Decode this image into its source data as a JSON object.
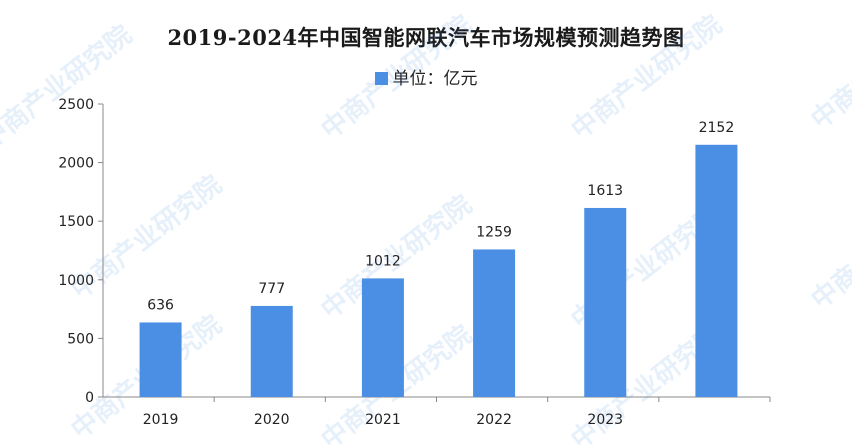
{
  "chart_data": {
    "type": "bar",
    "title": "2019-2024年中国智能网联汽车市场规模预测趋势图",
    "legend": "单位：亿元",
    "legend_position": "top",
    "categories": [
      "2019",
      "2020",
      "2021",
      "2022",
      "2023",
      ""
    ],
    "values": [
      636,
      777,
      1012,
      1259,
      1613,
      2152
    ],
    "ylim": [
      0,
      2500
    ],
    "yticks": [
      "2500",
      "2000",
      "1500",
      "1000",
      "500",
      "0"
    ],
    "grid": false,
    "bar_color": "#4a8fe3"
  },
  "watermark": "中商产业研究院"
}
